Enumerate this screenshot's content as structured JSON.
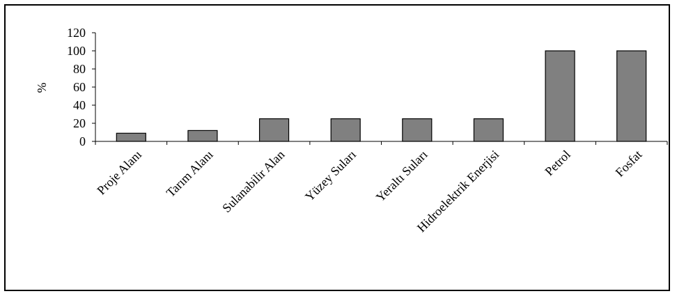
{
  "chart_data": {
    "type": "bar",
    "categories": [
      "Proje Alanı",
      "Tarım Alanı",
      "Sulanabilir Alan",
      "Yüzey Suları",
      "Yeraltı Suları",
      "Hidroelektrik Enerjisi",
      "Petrol",
      "Fosfat"
    ],
    "values": [
      9,
      12,
      25,
      25,
      25,
      25,
      100,
      100
    ],
    "title": "",
    "xlabel": "",
    "ylabel": "%",
    "ylim": [
      0,
      120
    ],
    "yticks": [
      0,
      20,
      40,
      60,
      80,
      100,
      120
    ],
    "bar_color": "#808080",
    "grid": false,
    "legend": "none"
  }
}
